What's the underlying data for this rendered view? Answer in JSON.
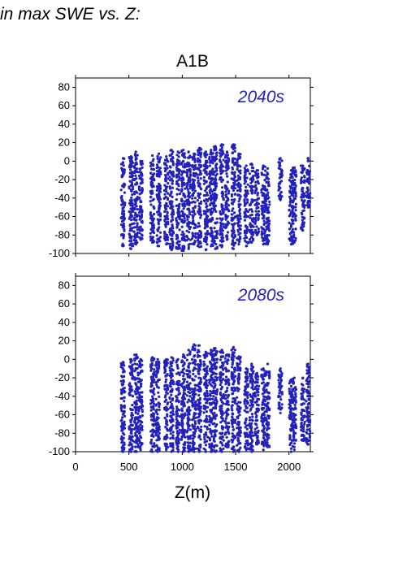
{
  "header": {
    "text": "in max SWE vs. Z:"
  },
  "chart_data": {
    "type": "scatter",
    "title": "A1B",
    "xlabel": "Z(m)",
    "ylabel": "",
    "xlim": [
      0,
      2200
    ],
    "ylim": [
      -100,
      90
    ],
    "x_ticks": [
      0,
      500,
      1000,
      1500,
      2000
    ],
    "y_ticks": [
      -100,
      -80,
      -60,
      -40,
      -20,
      0,
      20,
      40,
      60,
      80
    ],
    "grid": false,
    "point_color": "#2222bb",
    "panels": [
      {
        "label": "2040s",
        "point_columns": [
          {
            "z": 445,
            "min": -92,
            "max": 3
          },
          {
            "z": 520,
            "min": -95,
            "max": 5
          },
          {
            "z": 565,
            "min": -90,
            "max": 10
          },
          {
            "z": 610,
            "min": -85,
            "max": 0
          },
          {
            "z": 720,
            "min": -88,
            "max": 6
          },
          {
            "z": 780,
            "min": -92,
            "max": 8
          },
          {
            "z": 850,
            "min": -90,
            "max": 5
          },
          {
            "z": 900,
            "min": -96,
            "max": 12
          },
          {
            "z": 960,
            "min": -95,
            "max": 10
          },
          {
            "z": 1010,
            "min": -97,
            "max": 12
          },
          {
            "z": 1060,
            "min": -95,
            "max": 10
          },
          {
            "z": 1110,
            "min": -90,
            "max": 8
          },
          {
            "z": 1160,
            "min": -93,
            "max": 14
          },
          {
            "z": 1220,
            "min": -96,
            "max": 10
          },
          {
            "z": 1270,
            "min": -92,
            "max": 12
          },
          {
            "z": 1310,
            "min": -95,
            "max": 16
          },
          {
            "z": 1370,
            "min": -93,
            "max": 18
          },
          {
            "z": 1420,
            "min": -85,
            "max": 10
          },
          {
            "z": 1480,
            "min": -95,
            "max": 18
          },
          {
            "z": 1530,
            "min": -90,
            "max": 8
          },
          {
            "z": 1600,
            "min": -92,
            "max": -5
          },
          {
            "z": 1650,
            "min": -88,
            "max": -3
          },
          {
            "z": 1700,
            "min": -80,
            "max": -10
          },
          {
            "z": 1760,
            "min": -90,
            "max": -5
          },
          {
            "z": 1800,
            "min": -90,
            "max": -8
          },
          {
            "z": 1920,
            "min": -42,
            "max": 3
          },
          {
            "z": 2020,
            "min": -90,
            "max": -10
          },
          {
            "z": 2050,
            "min": -88,
            "max": -7
          },
          {
            "z": 2130,
            "min": -75,
            "max": -5
          },
          {
            "z": 2180,
            "min": -50,
            "max": 3
          }
        ]
      },
      {
        "label": "2080s",
        "point_columns": [
          {
            "z": 445,
            "min": -100,
            "max": -3
          },
          {
            "z": 520,
            "min": -100,
            "max": 0
          },
          {
            "z": 570,
            "min": -100,
            "max": 5
          },
          {
            "z": 610,
            "min": -98,
            "max": 0
          },
          {
            "z": 720,
            "min": -100,
            "max": 2
          },
          {
            "z": 770,
            "min": -100,
            "max": 0
          },
          {
            "z": 850,
            "min": -98,
            "max": 0
          },
          {
            "z": 900,
            "min": -100,
            "max": 2
          },
          {
            "z": 960,
            "min": -100,
            "max": 0
          },
          {
            "z": 1010,
            "min": -100,
            "max": 5
          },
          {
            "z": 1060,
            "min": -100,
            "max": 10
          },
          {
            "z": 1110,
            "min": -100,
            "max": 16
          },
          {
            "z": 1160,
            "min": -100,
            "max": 15
          },
          {
            "z": 1220,
            "min": -100,
            "max": 8
          },
          {
            "z": 1270,
            "min": -100,
            "max": 10
          },
          {
            "z": 1310,
            "min": -100,
            "max": 12
          },
          {
            "z": 1370,
            "min": -100,
            "max": 10
          },
          {
            "z": 1420,
            "min": -95,
            "max": 5
          },
          {
            "z": 1480,
            "min": -100,
            "max": 13
          },
          {
            "z": 1530,
            "min": -100,
            "max": 3
          },
          {
            "z": 1600,
            "min": -98,
            "max": -10
          },
          {
            "z": 1650,
            "min": -100,
            "max": -5
          },
          {
            "z": 1700,
            "min": -92,
            "max": -15
          },
          {
            "z": 1760,
            "min": -98,
            "max": -10
          },
          {
            "z": 1800,
            "min": -95,
            "max": -5
          },
          {
            "z": 1920,
            "min": -58,
            "max": -10
          },
          {
            "z": 2020,
            "min": -100,
            "max": -22
          },
          {
            "z": 2050,
            "min": -98,
            "max": -20
          },
          {
            "z": 2130,
            "min": -88,
            "max": -20
          },
          {
            "z": 2180,
            "min": -92,
            "max": -5
          }
        ]
      }
    ]
  }
}
